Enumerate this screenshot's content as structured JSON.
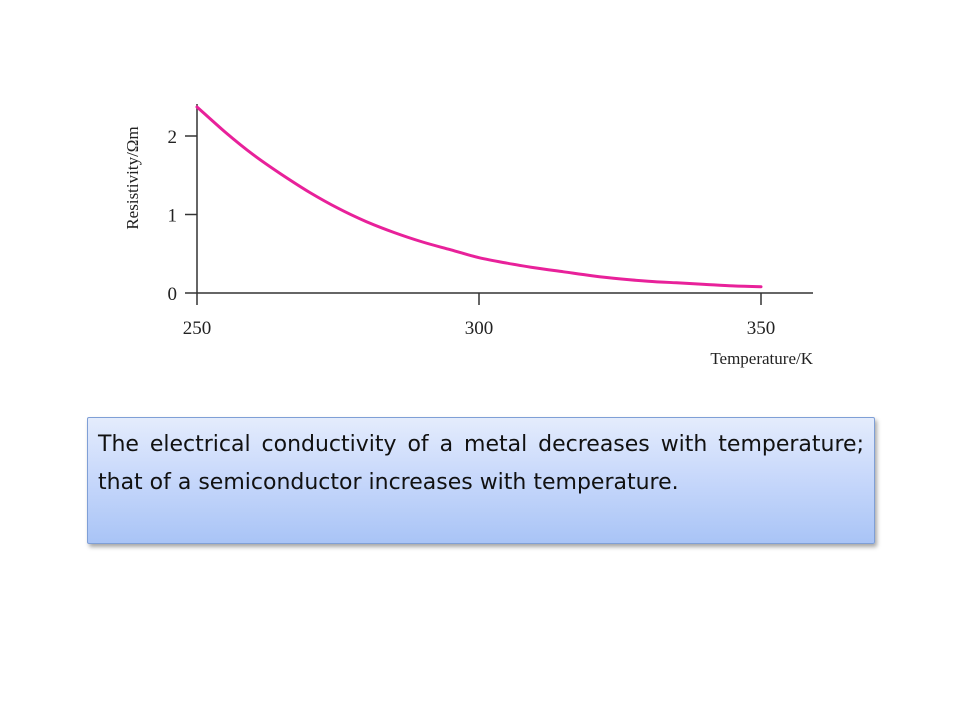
{
  "chart_data": {
    "type": "line",
    "xlabel": "Temperature/K",
    "ylabel": "Resistivity/Ωm",
    "xlim": [
      250,
      360
    ],
    "ylim": [
      0,
      2.45
    ],
    "x_ticks": [
      "250",
      "300",
      "350"
    ],
    "y_ticks": [
      "0",
      "1",
      "2"
    ],
    "grid": false,
    "series": [
      {
        "color": "#e8219a",
        "x": [
          250,
          255,
          260,
          265,
          270,
          275,
          280,
          285,
          290,
          295,
          300,
          305,
          310,
          315,
          320,
          325,
          330,
          335,
          340,
          345,
          350
        ],
        "y": [
          2.37,
          2.05,
          1.76,
          1.51,
          1.28,
          1.08,
          0.91,
          0.77,
          0.65,
          0.55,
          0.45,
          0.38,
          0.32,
          0.27,
          0.22,
          0.18,
          0.15,
          0.13,
          0.11,
          0.09,
          0.08
        ]
      }
    ]
  },
  "caption": {
    "text": "The electrical conductivity of a metal decreases with temperature; that of a semiconductor increases with temperature."
  }
}
